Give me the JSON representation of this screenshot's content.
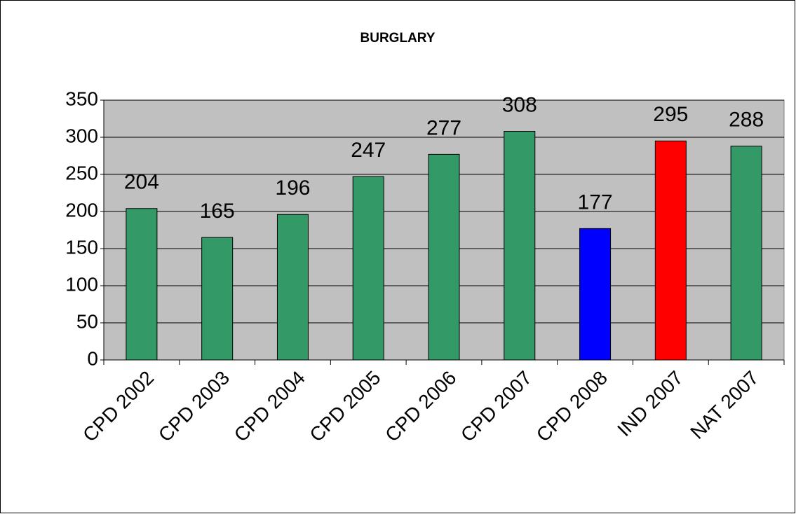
{
  "chart_data": {
    "type": "bar",
    "title": "BURGLARY",
    "categories": [
      "CPD 2002",
      "CPD 2003",
      "CPD 2004",
      "CPD 2005",
      "CPD 2006",
      "CPD 2007",
      "CPD 2008",
      "IND 2007",
      "NAT 2007"
    ],
    "values": [
      204,
      165,
      196,
      247,
      277,
      308,
      177,
      295,
      288
    ],
    "colors": [
      "#339966",
      "#339966",
      "#339966",
      "#339966",
      "#339966",
      "#339966",
      "#0000ff",
      "#ff0000",
      "#339966"
    ],
    "ylim": [
      0,
      350
    ],
    "yticks": [
      0,
      50,
      100,
      150,
      200,
      250,
      300,
      350
    ],
    "grid": true
  }
}
